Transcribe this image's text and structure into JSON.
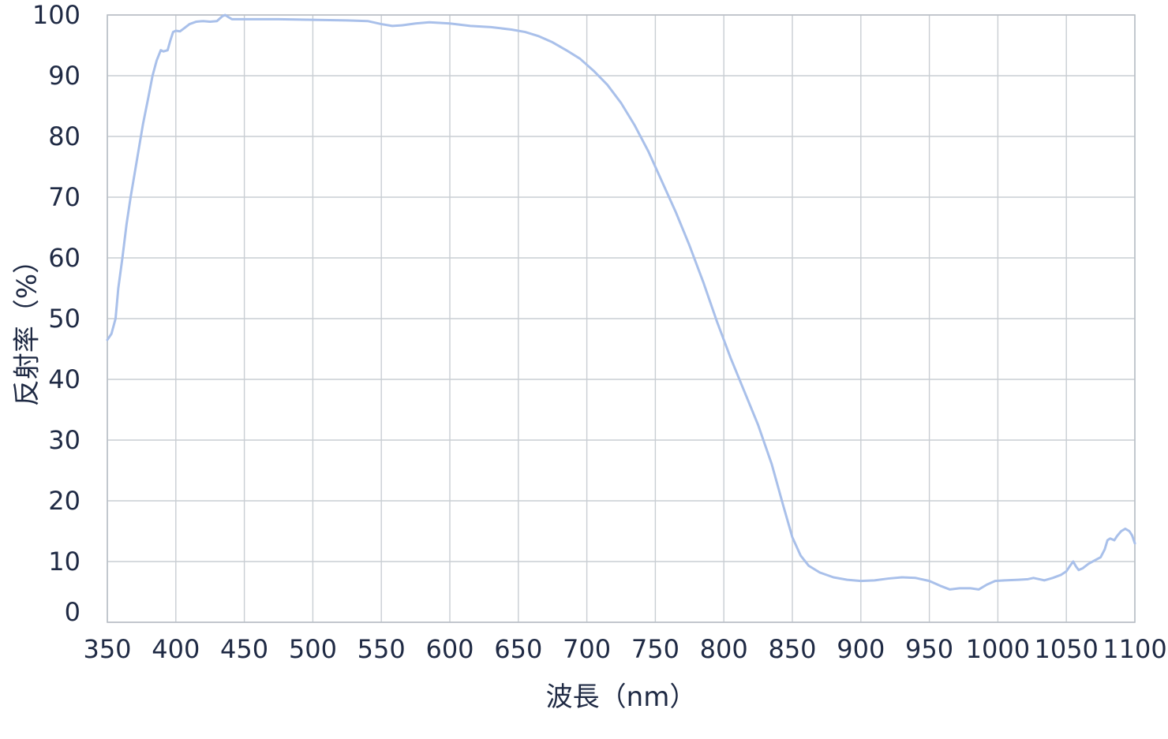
{
  "chart_data": {
    "type": "line",
    "xlabel": "波長（nm）",
    "ylabel": "反射率（%）",
    "xlim": [
      350,
      1100
    ],
    "ylim": [
      0,
      100
    ],
    "x_ticks": [
      350,
      400,
      450,
      500,
      550,
      600,
      650,
      700,
      750,
      800,
      850,
      900,
      950,
      1000,
      1050,
      1100
    ],
    "y_ticks": [
      0,
      10,
      20,
      30,
      40,
      50,
      60,
      70,
      80,
      90,
      100
    ],
    "grid": true,
    "legend": "none",
    "series": [
      {
        "color": "#a9c0ea",
        "points": [
          [
            350,
            46.5
          ],
          [
            353,
            47.5
          ],
          [
            356,
            50
          ],
          [
            358,
            55
          ],
          [
            361,
            60
          ],
          [
            364,
            65.5
          ],
          [
            367,
            70
          ],
          [
            370,
            74
          ],
          [
            373,
            78
          ],
          [
            376,
            82
          ],
          [
            380,
            86.5
          ],
          [
            383,
            90
          ],
          [
            386,
            92.5
          ],
          [
            389,
            94.2
          ],
          [
            391,
            94
          ],
          [
            394,
            94.2
          ],
          [
            396,
            95.8
          ],
          [
            398,
            97.2
          ],
          [
            400,
            97.4
          ],
          [
            403,
            97.3
          ],
          [
            406,
            97.8
          ],
          [
            410,
            98.5
          ],
          [
            415,
            98.9
          ],
          [
            420,
            99
          ],
          [
            425,
            98.9
          ],
          [
            430,
            99
          ],
          [
            434,
            99.8
          ],
          [
            436,
            100
          ],
          [
            438,
            99.7
          ],
          [
            441,
            99.3
          ],
          [
            450,
            99.3
          ],
          [
            475,
            99.3
          ],
          [
            500,
            99.2
          ],
          [
            525,
            99.1
          ],
          [
            540,
            99
          ],
          [
            550,
            98.5
          ],
          [
            558,
            98.2
          ],
          [
            565,
            98.3
          ],
          [
            575,
            98.6
          ],
          [
            585,
            98.8
          ],
          [
            600,
            98.6
          ],
          [
            615,
            98.2
          ],
          [
            630,
            98
          ],
          [
            645,
            97.6
          ],
          [
            655,
            97.2
          ],
          [
            665,
            96.5
          ],
          [
            675,
            95.5
          ],
          [
            685,
            94.2
          ],
          [
            695,
            92.8
          ],
          [
            705,
            90.8
          ],
          [
            715,
            88.5
          ],
          [
            725,
            85.5
          ],
          [
            735,
            81.8
          ],
          [
            745,
            77.5
          ],
          [
            755,
            72.5
          ],
          [
            765,
            67.5
          ],
          [
            775,
            62
          ],
          [
            785,
            56
          ],
          [
            795,
            49.5
          ],
          [
            805,
            43.5
          ],
          [
            815,
            38
          ],
          [
            825,
            32.5
          ],
          [
            835,
            26
          ],
          [
            843,
            19.5
          ],
          [
            850,
            14
          ],
          [
            856,
            11
          ],
          [
            862,
            9.3
          ],
          [
            870,
            8.2
          ],
          [
            880,
            7.4
          ],
          [
            890,
            7
          ],
          [
            900,
            6.8
          ],
          [
            910,
            6.9
          ],
          [
            920,
            7.2
          ],
          [
            930,
            7.4
          ],
          [
            940,
            7.3
          ],
          [
            950,
            6.8
          ],
          [
            958,
            6
          ],
          [
            965,
            5.4
          ],
          [
            972,
            5.6
          ],
          [
            980,
            5.6
          ],
          [
            986,
            5.4
          ],
          [
            992,
            6.2
          ],
          [
            998,
            6.8
          ],
          [
            1005,
            6.9
          ],
          [
            1015,
            7
          ],
          [
            1022,
            7.1
          ],
          [
            1026,
            7.3
          ],
          [
            1030,
            7.1
          ],
          [
            1034,
            6.9
          ],
          [
            1040,
            7.3
          ],
          [
            1046,
            7.8
          ],
          [
            1050,
            8.4
          ],
          [
            1053,
            9.4
          ],
          [
            1055,
            10
          ],
          [
            1057,
            9.2
          ],
          [
            1059,
            8.6
          ],
          [
            1062,
            8.9
          ],
          [
            1066,
            9.6
          ],
          [
            1070,
            10.1
          ],
          [
            1075,
            10.7
          ],
          [
            1078,
            12
          ],
          [
            1080,
            13.5
          ],
          [
            1082,
            13.8
          ],
          [
            1085,
            13.5
          ],
          [
            1087,
            14.2
          ],
          [
            1090,
            15
          ],
          [
            1093,
            15.4
          ],
          [
            1096,
            15
          ],
          [
            1098,
            14.3
          ],
          [
            1100,
            13
          ]
        ]
      }
    ]
  }
}
